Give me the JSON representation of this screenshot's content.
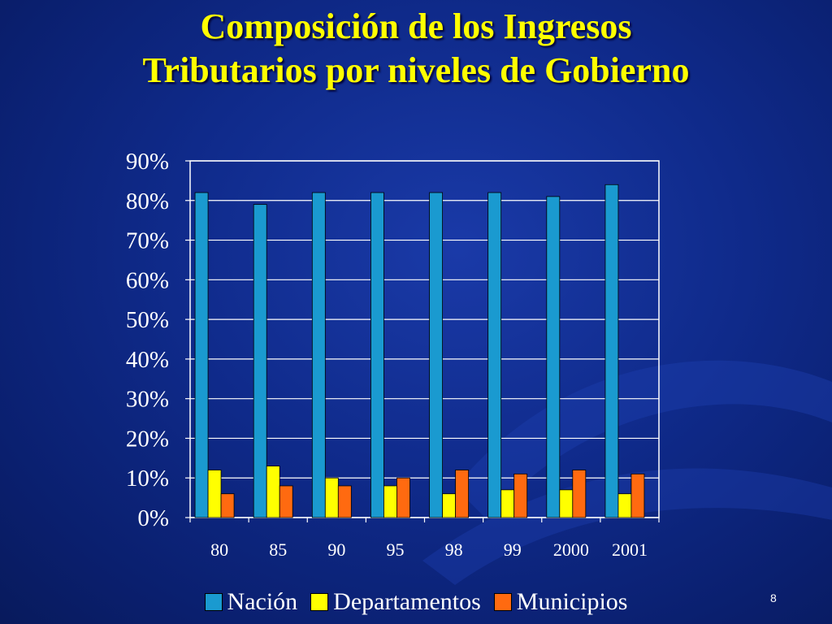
{
  "slide": {
    "title_line1": "Composición de los Ingresos",
    "title_line2": "Tributarios por niveles de Gobierno",
    "page_number": "8"
  },
  "colors": {
    "background": "#0f2a8a",
    "title": "#ffff00",
    "axis_text": "#ffffff"
  },
  "chart_data": {
    "type": "bar",
    "title": "",
    "xlabel": "",
    "ylabel": "",
    "categories": [
      "80",
      "85",
      "90",
      "95",
      "98",
      "99",
      "2000",
      "2001"
    ],
    "series": [
      {
        "name": "Nación",
        "color": "#1a9ad0",
        "values": [
          82,
          79,
          82,
          82,
          82,
          82,
          81,
          84
        ]
      },
      {
        "name": "Departamentos",
        "color": "#ffff00",
        "values": [
          12,
          13,
          10,
          8,
          6,
          7,
          7,
          6
        ]
      },
      {
        "name": "Municipios",
        "color": "#ff6a10",
        "values": [
          6,
          8,
          8,
          10,
          12,
          11,
          12,
          11
        ]
      }
    ],
    "ylim": [
      0,
      90
    ],
    "yticks": [
      "0%",
      "10%",
      "20%",
      "30%",
      "40%",
      "50%",
      "60%",
      "70%",
      "80%",
      "90%"
    ],
    "grid": true,
    "legend_position": "bottom"
  }
}
